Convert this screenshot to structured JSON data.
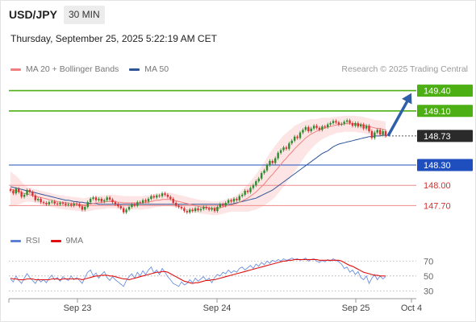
{
  "header": {
    "symbol": "USD/JPY",
    "timeframe": "30 MIN",
    "timestamp": "Thursday, September 25, 2025 5:22:19 AM CET"
  },
  "legend": {
    "items": [
      {
        "label": "MA 20 + Bollinger Bands",
        "color": "#f08080"
      },
      {
        "label": "MA 50",
        "color": "#2f5597"
      }
    ],
    "credit": "Research © 2025 Trading Central"
  },
  "rsi_legend": {
    "items": [
      {
        "label": "RSI",
        "color": "#5b7fd6"
      },
      {
        "label": "9MA",
        "color": "#e01010"
      }
    ]
  },
  "colors": {
    "resistance": "#4caf14",
    "pivot": "#1f4fbf",
    "support": "#f08a8a",
    "last": "#2a2a2a",
    "bull_candle": "#2e8b2e",
    "bear_candle": "#d93030",
    "bollinger_fill": "#fde0e0",
    "ma20": "#f08080",
    "ma50": "#2f5597",
    "rsi": "#6b8fe0",
    "rsi_ma": "#e01010",
    "arrow": "#2f5fa8"
  },
  "chart_data": [
    {
      "type": "candlestick",
      "title": "",
      "x_ticks": [
        "Sep 23",
        "Sep 24",
        "Sep 25",
        "Oct 4"
      ],
      "ylim": [
        147.55,
        149.55
      ],
      "levels": [
        {
          "label": "149.40",
          "value": 149.4,
          "kind": "resistance"
        },
        {
          "label": "149.10",
          "value": 149.1,
          "kind": "resistance"
        },
        {
          "label": "148.73",
          "value": 148.73,
          "kind": "last"
        },
        {
          "label": "148.30",
          "value": 148.3,
          "kind": "pivot"
        },
        {
          "label": "148.00",
          "value": 148.0,
          "kind": "support"
        },
        {
          "label": "147.70",
          "value": 147.7,
          "kind": "support"
        }
      ],
      "close": [
        147.92,
        147.88,
        147.95,
        147.9,
        147.83,
        147.86,
        147.93,
        147.9,
        147.85,
        147.78,
        147.8,
        147.75,
        147.74,
        147.72,
        147.75,
        147.76,
        147.73,
        147.72,
        147.74,
        147.73,
        147.71,
        147.72,
        147.7,
        147.73,
        147.72,
        147.69,
        147.64,
        147.68,
        147.75,
        147.8,
        147.82,
        147.78,
        147.8,
        147.76,
        147.78,
        147.82,
        147.79,
        147.75,
        147.72,
        147.69,
        147.66,
        147.6,
        147.64,
        147.68,
        147.72,
        147.7,
        147.75,
        147.74,
        147.78,
        147.76,
        147.8,
        147.84,
        147.82,
        147.85,
        147.84,
        147.88,
        147.86,
        147.83,
        147.8,
        147.74,
        147.7,
        147.68,
        147.66,
        147.62,
        147.6,
        147.64,
        147.62,
        147.66,
        147.63,
        147.65,
        147.68,
        147.66,
        147.64,
        147.66,
        147.62,
        147.68,
        147.72,
        147.7,
        147.74,
        147.78,
        147.76,
        147.8,
        147.78,
        147.84,
        147.86,
        147.92,
        147.9,
        147.96,
        148.0,
        148.06,
        148.1,
        148.18,
        148.22,
        148.3,
        148.36,
        148.33,
        148.4,
        148.48,
        148.52,
        148.56,
        148.54,
        148.62,
        148.66,
        148.72,
        148.7,
        148.78,
        148.82,
        148.86,
        148.8,
        148.84,
        148.88,
        148.85,
        148.82,
        148.87,
        148.86,
        148.9,
        148.92,
        148.95,
        148.93,
        148.9,
        148.91,
        148.94,
        148.96,
        148.92,
        148.88,
        148.92,
        148.87,
        148.9,
        148.84,
        148.88,
        148.8,
        148.7,
        148.78,
        148.82,
        148.75,
        148.8,
        148.73
      ],
      "ma20": [
        147.95,
        147.93,
        147.92,
        147.91,
        147.89,
        147.88,
        147.87,
        147.86,
        147.85,
        147.84,
        147.83,
        147.82,
        147.81,
        147.8,
        147.79,
        147.78,
        147.77,
        147.76,
        147.75,
        147.75,
        147.74,
        147.74,
        147.73,
        147.73,
        147.72,
        147.72,
        147.71,
        147.71,
        147.72,
        147.72,
        147.73,
        147.74,
        147.74,
        147.75,
        147.75,
        147.76,
        147.76,
        147.76,
        147.76,
        147.75,
        147.75,
        147.74,
        147.74,
        147.74,
        147.74,
        147.74,
        147.74,
        147.74,
        147.74,
        147.75,
        147.75,
        147.76,
        147.77,
        147.78,
        147.78,
        147.79,
        147.79,
        147.79,
        147.79,
        147.78,
        147.77,
        147.76,
        147.75,
        147.74,
        147.73,
        147.72,
        147.71,
        147.7,
        147.69,
        147.68,
        147.68,
        147.67,
        147.67,
        147.66,
        147.66,
        147.66,
        147.67,
        147.68,
        147.69,
        147.7,
        147.71,
        147.72,
        147.73,
        147.75,
        147.77,
        147.79,
        147.81,
        147.84,
        147.87,
        147.9,
        147.94,
        147.98,
        148.02,
        148.07,
        148.12,
        148.16,
        148.21,
        148.26,
        148.31,
        148.36,
        148.4,
        148.45,
        148.49,
        148.54,
        148.58,
        148.62,
        148.66,
        148.7,
        148.73,
        148.76,
        148.78,
        148.8,
        148.82,
        148.84,
        148.85,
        148.86,
        148.87,
        148.88,
        148.89,
        148.9,
        148.9,
        148.91,
        148.91,
        148.91,
        148.91,
        148.91,
        148.9,
        148.9,
        148.89,
        148.88,
        148.87,
        148.86,
        148.85,
        148.84,
        148.84,
        148.83,
        148.82
      ],
      "bb_width": [
        0.26,
        0.24,
        0.22,
        0.19,
        0.16,
        0.13,
        0.11,
        0.1,
        0.1,
        0.1,
        0.1,
        0.1,
        0.1,
        0.1,
        0.1,
        0.1,
        0.1,
        0.1,
        0.1,
        0.1,
        0.1,
        0.1,
        0.1,
        0.1,
        0.1,
        0.1,
        0.1,
        0.1,
        0.1,
        0.1,
        0.1,
        0.1,
        0.1,
        0.1,
        0.1,
        0.1,
        0.1,
        0.1,
        0.1,
        0.1,
        0.1,
        0.1,
        0.1,
        0.1,
        0.1,
        0.1,
        0.1,
        0.1,
        0.1,
        0.1,
        0.1,
        0.1,
        0.1,
        0.1,
        0.1,
        0.1,
        0.1,
        0.1,
        0.1,
        0.1,
        0.1,
        0.1,
        0.1,
        0.1,
        0.1,
        0.1,
        0.1,
        0.1,
        0.1,
        0.1,
        0.1,
        0.1,
        0.1,
        0.1,
        0.1,
        0.1,
        0.1,
        0.1,
        0.1,
        0.1,
        0.1,
        0.11,
        0.12,
        0.14,
        0.16,
        0.18,
        0.2,
        0.22,
        0.24,
        0.26,
        0.28,
        0.3,
        0.32,
        0.34,
        0.36,
        0.37,
        0.38,
        0.38,
        0.38,
        0.38,
        0.37,
        0.36,
        0.35,
        0.34,
        0.32,
        0.3,
        0.28,
        0.26,
        0.24,
        0.22,
        0.2,
        0.18,
        0.17,
        0.16,
        0.15,
        0.14,
        0.13,
        0.13,
        0.12,
        0.12,
        0.12,
        0.12,
        0.12,
        0.12,
        0.12,
        0.12,
        0.12,
        0.12,
        0.12,
        0.12,
        0.12,
        0.12,
        0.12,
        0.12,
        0.12,
        0.12,
        0.12
      ],
      "ma50": [
        147.98,
        147.97,
        147.96,
        147.95,
        147.94,
        147.93,
        147.92,
        147.91,
        147.9,
        147.89,
        147.88,
        147.87,
        147.86,
        147.85,
        147.84,
        147.83,
        147.82,
        147.81,
        147.8,
        147.79,
        147.78,
        147.78,
        147.77,
        147.76,
        147.76,
        147.75,
        147.75,
        147.74,
        147.74,
        147.73,
        147.73,
        147.73,
        147.72,
        147.72,
        147.72,
        147.72,
        147.72,
        147.72,
        147.72,
        147.72,
        147.72,
        147.72,
        147.72,
        147.72,
        147.72,
        147.72,
        147.72,
        147.72,
        147.72,
        147.72,
        147.72,
        147.72,
        147.72,
        147.72,
        147.72,
        147.72,
        147.72,
        147.72,
        147.72,
        147.72,
        147.72,
        147.72,
        147.72,
        147.72,
        147.72,
        147.72,
        147.72,
        147.72,
        147.72,
        147.72,
        147.72,
        147.72,
        147.72,
        147.72,
        147.72,
        147.72,
        147.72,
        147.72,
        147.72,
        147.72,
        147.72,
        147.73,
        147.74,
        147.75,
        147.76,
        147.77,
        147.78,
        147.79,
        147.8,
        147.81,
        147.83,
        147.85,
        147.87,
        147.89,
        147.91,
        147.93,
        147.96,
        147.99,
        148.02,
        148.05,
        148.08,
        148.11,
        148.14,
        148.17,
        148.2,
        148.23,
        148.26,
        148.29,
        148.32,
        148.35,
        148.38,
        148.41,
        148.44,
        148.47,
        148.49,
        148.51,
        148.54,
        148.57,
        148.59,
        148.61,
        148.62,
        148.63,
        148.64,
        148.65,
        148.66,
        148.67,
        148.68,
        148.69,
        148.7,
        148.71,
        148.72,
        148.72,
        148.73,
        148.73,
        148.73,
        148.74,
        148.74
      ],
      "forecast": {
        "from": 148.73,
        "to": 149.4
      }
    },
    {
      "type": "line",
      "title": "",
      "ylim": [
        25,
        80
      ],
      "y_ticks": [
        "70",
        "50",
        "30"
      ],
      "series": [
        {
          "name": "RSI",
          "values": [
            46,
            42,
            50,
            44,
            40,
            47,
            53,
            48,
            44,
            40,
            46,
            42,
            45,
            41,
            47,
            51,
            45,
            48,
            43,
            49,
            46,
            44,
            50,
            45,
            48,
            44,
            40,
            48,
            55,
            58,
            50,
            54,
            47,
            52,
            56,
            48,
            44,
            49,
            45,
            42,
            39,
            36,
            44,
            49,
            53,
            47,
            55,
            50,
            57,
            52,
            58,
            62,
            54,
            58,
            52,
            60,
            55,
            49,
            45,
            40,
            38,
            36,
            42,
            38,
            40,
            45,
            41,
            47,
            43,
            46,
            49,
            44,
            47,
            41,
            48,
            52,
            50,
            55,
            53,
            58,
            54,
            57,
            55,
            60,
            62,
            58,
            61,
            64,
            60,
            66,
            63,
            68,
            65,
            70,
            67,
            71,
            69,
            72,
            70,
            73,
            71,
            72,
            74,
            72,
            73,
            71,
            72,
            74,
            70,
            72,
            73,
            70,
            68,
            71,
            69,
            72,
            70,
            73,
            71,
            69,
            66,
            60,
            62,
            55,
            58,
            52,
            56,
            48,
            45,
            50,
            40,
            47,
            52,
            45,
            50,
            46,
            49
          ]
        },
        {
          "name": "9MA",
          "values": [
            47,
            46,
            46,
            45,
            45,
            45,
            46,
            46,
            46,
            45,
            45,
            45,
            45,
            45,
            45,
            46,
            46,
            46,
            45,
            46,
            46,
            46,
            46,
            46,
            46,
            46,
            45,
            46,
            47,
            48,
            49,
            50,
            50,
            51,
            51,
            51,
            50,
            50,
            49,
            48,
            47,
            46,
            46,
            45,
            46,
            47,
            48,
            49,
            50,
            51,
            52,
            53,
            54,
            55,
            55,
            56,
            56,
            55,
            53,
            51,
            49,
            47,
            45,
            43,
            42,
            41,
            40,
            41,
            41,
            42,
            43,
            44,
            44,
            45,
            45,
            46,
            47,
            48,
            49,
            50,
            51,
            52,
            53,
            54,
            55,
            56,
            57,
            58,
            59,
            60,
            61,
            62,
            63,
            64,
            65,
            66,
            67,
            68,
            69,
            70,
            70,
            71,
            71,
            72,
            72,
            72,
            72,
            72,
            72,
            72,
            72,
            72,
            71,
            71,
            71,
            71,
            71,
            71,
            71,
            71,
            70,
            68,
            66,
            64,
            63,
            61,
            59,
            57,
            55,
            54,
            53,
            52,
            51,
            51,
            50,
            50,
            50
          ]
        }
      ]
    }
  ]
}
